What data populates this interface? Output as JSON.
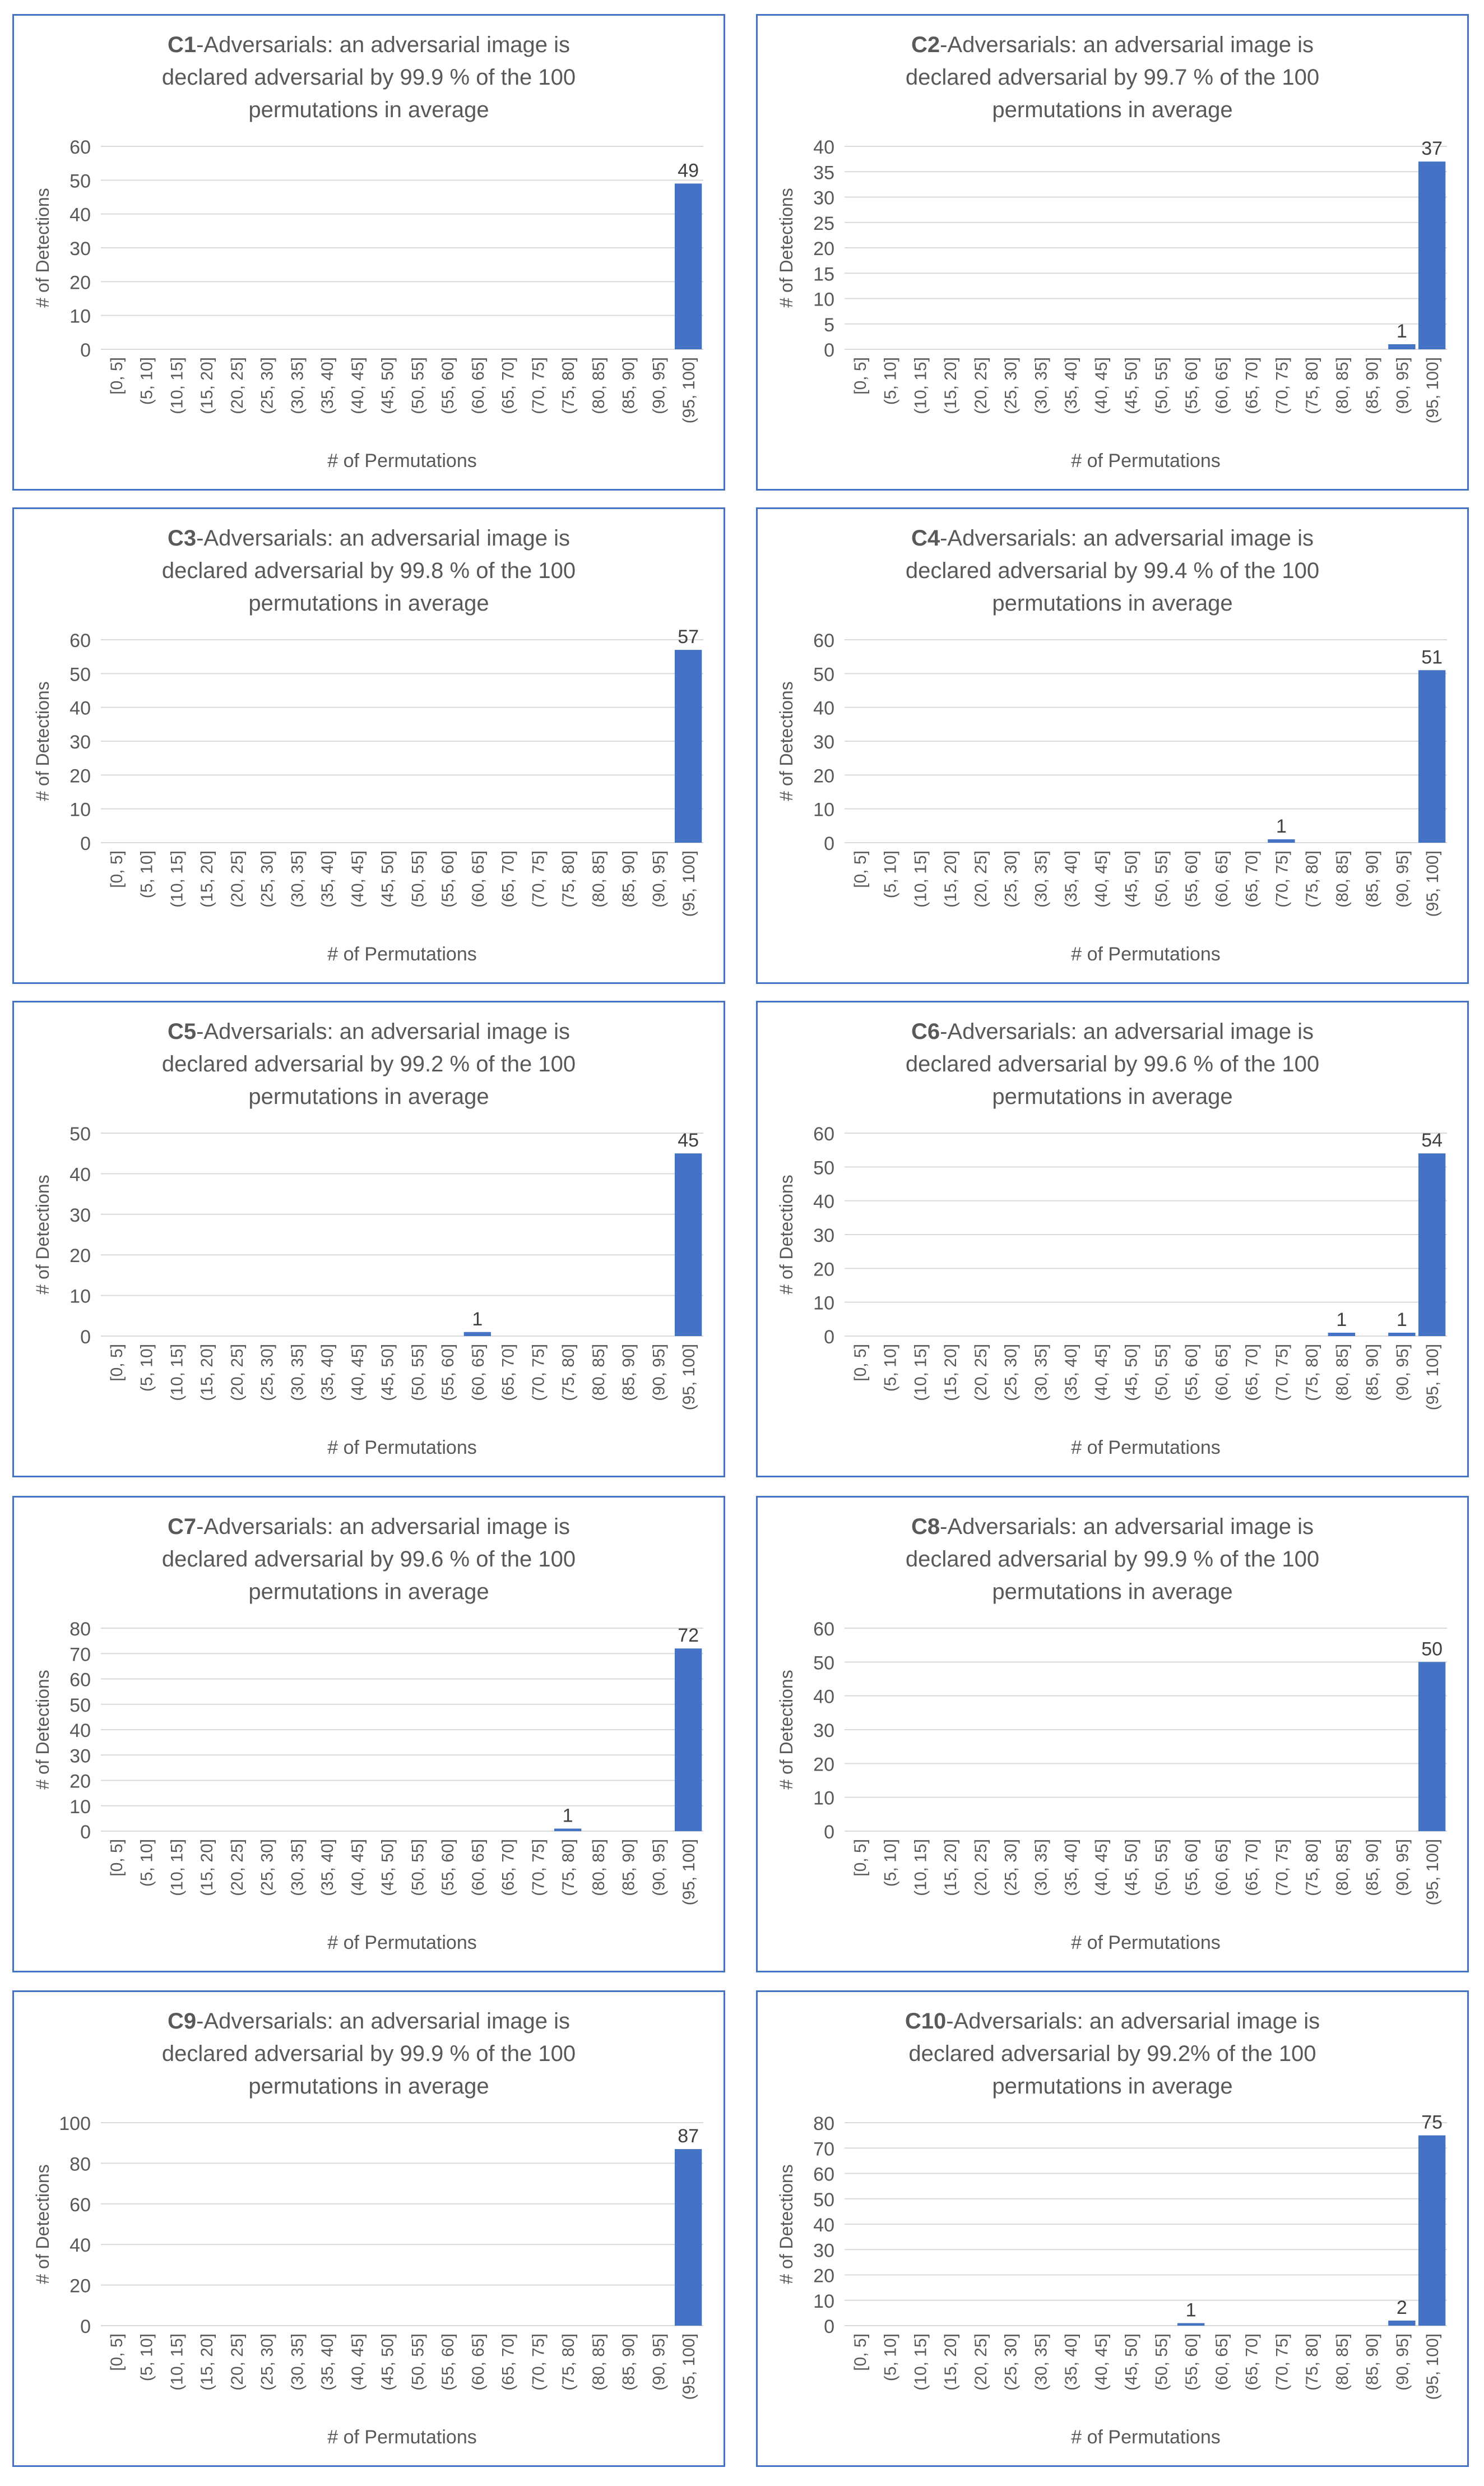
{
  "axis_labels": {
    "x": "# of Permutations",
    "y": "# of Detections"
  },
  "bar_color": "#4472c4",
  "grid_color": "#d9d9d9",
  "categories": [
    "[0, 5]",
    "(5, 10]",
    "(10, 15]",
    "(15, 20]",
    "(20, 25]",
    "(25, 30]",
    "(30, 35]",
    "(35, 40]",
    "(40, 45]",
    "(45, 50]",
    "(50, 55]",
    "(55, 60]",
    "(60, 65]",
    "(65, 70]",
    "(70, 75]",
    "(75, 80]",
    "(80, 85]",
    "(85, 90]",
    "(90, 95]",
    "(95, 100]"
  ],
  "chart_data": [
    {
      "type": "bar",
      "title_bold": "C1",
      "title_rest": "-Adversarials: an adversarial image is declared adversarial by 99.9 % of the 100 permutations in average",
      "xlabel": "# of Permutations",
      "ylabel": "# of Detections",
      "ylim": [
        0,
        60
      ],
      "yticks": [
        0,
        10,
        20,
        30,
        40,
        50,
        60
      ],
      "values": [
        0,
        0,
        0,
        0,
        0,
        0,
        0,
        0,
        0,
        0,
        0,
        0,
        0,
        0,
        0,
        0,
        0,
        0,
        0,
        49
      ]
    },
    {
      "type": "bar",
      "title_bold": "C2",
      "title_rest": "-Adversarials: an adversarial image is declared adversarial by 99.7 % of the 100 permutations in average",
      "xlabel": "# of Permutations",
      "ylabel": "# of Detections",
      "ylim": [
        0,
        40
      ],
      "yticks": [
        0,
        5,
        10,
        15,
        20,
        25,
        30,
        35,
        40
      ],
      "values": [
        0,
        0,
        0,
        0,
        0,
        0,
        0,
        0,
        0,
        0,
        0,
        0,
        0,
        0,
        0,
        0,
        0,
        0,
        1,
        37
      ]
    },
    {
      "type": "bar",
      "title_bold": "C3",
      "title_rest": "-Adversarials: an adversarial image is declared adversarial by 99.8 % of the 100 permutations in average",
      "xlabel": "# of Permutations",
      "ylabel": "# of Detections",
      "ylim": [
        0,
        60
      ],
      "yticks": [
        0,
        10,
        20,
        30,
        40,
        50,
        60
      ],
      "values": [
        0,
        0,
        0,
        0,
        0,
        0,
        0,
        0,
        0,
        0,
        0,
        0,
        0,
        0,
        0,
        0,
        0,
        0,
        0,
        57
      ]
    },
    {
      "type": "bar",
      "title_bold": "C4",
      "title_rest": "-Adversarials: an adversarial image is declared adversarial by 99.4 % of the 100 permutations in average",
      "xlabel": "# of Permutations",
      "ylabel": "# of Detections",
      "ylim": [
        0,
        60
      ],
      "yticks": [
        0,
        10,
        20,
        30,
        40,
        50,
        60
      ],
      "values": [
        0,
        0,
        0,
        0,
        0,
        0,
        0,
        0,
        0,
        0,
        0,
        0,
        0,
        0,
        1,
        0,
        0,
        0,
        0,
        51
      ]
    },
    {
      "type": "bar",
      "title_bold": "C5",
      "title_rest": "-Adversarials: an adversarial image is declared adversarial by 99.2 % of the 100 permutations in average",
      "xlabel": "# of Permutations",
      "ylabel": "# of Detections",
      "ylim": [
        0,
        50
      ],
      "yticks": [
        0,
        10,
        20,
        30,
        40,
        50
      ],
      "values": [
        0,
        0,
        0,
        0,
        0,
        0,
        0,
        0,
        0,
        0,
        0,
        0,
        1,
        0,
        0,
        0,
        0,
        0,
        0,
        45
      ]
    },
    {
      "type": "bar",
      "title_bold": "C6",
      "title_rest": "-Adversarials: an adversarial image is declared adversarial by 99.6 % of the 100 permutations in average",
      "xlabel": "# of Permutations",
      "ylabel": "# of Detections",
      "ylim": [
        0,
        60
      ],
      "yticks": [
        0,
        10,
        20,
        30,
        40,
        50,
        60
      ],
      "values": [
        0,
        0,
        0,
        0,
        0,
        0,
        0,
        0,
        0,
        0,
        0,
        0,
        0,
        0,
        0,
        0,
        1,
        0,
        1,
        54
      ]
    },
    {
      "type": "bar",
      "title_bold": "C7",
      "title_rest": "-Adversarials: an adversarial image is declared adversarial by 99.6 % of the 100 permutations in average",
      "xlabel": "# of Permutations",
      "ylabel": "# of Detections",
      "ylim": [
        0,
        80
      ],
      "yticks": [
        0,
        10,
        20,
        30,
        40,
        50,
        60,
        70,
        80
      ],
      "values": [
        0,
        0,
        0,
        0,
        0,
        0,
        0,
        0,
        0,
        0,
        0,
        0,
        0,
        0,
        0,
        1,
        0,
        0,
        0,
        72
      ]
    },
    {
      "type": "bar",
      "title_bold": "C8",
      "title_rest": "-Adversarials: an adversarial image is declared adversarial by 99.9 % of the 100 permutations in average",
      "xlabel": "# of Permutations",
      "ylabel": "# of Detections",
      "ylim": [
        0,
        60
      ],
      "yticks": [
        0,
        10,
        20,
        30,
        40,
        50,
        60
      ],
      "values": [
        0,
        0,
        0,
        0,
        0,
        0,
        0,
        0,
        0,
        0,
        0,
        0,
        0,
        0,
        0,
        0,
        0,
        0,
        0,
        50
      ]
    },
    {
      "type": "bar",
      "title_bold": "C9",
      "title_rest": "-Adversarials: an adversarial image is declared adversarial by 99.9 % of the 100 permutations in average",
      "xlabel": "# of Permutations",
      "ylabel": "# of Detections",
      "ylim": [
        0,
        100
      ],
      "yticks": [
        0,
        20,
        40,
        60,
        80,
        100
      ],
      "values": [
        0,
        0,
        0,
        0,
        0,
        0,
        0,
        0,
        0,
        0,
        0,
        0,
        0,
        0,
        0,
        0,
        0,
        0,
        0,
        87
      ]
    },
    {
      "type": "bar",
      "title_bold": "C10",
      "title_rest": "-Adversarials: an adversarial image is declared adversarial by 99.2% of the 100 permutations in average",
      "xlabel": "# of Permutations",
      "ylabel": "# of Detections",
      "ylim": [
        0,
        80
      ],
      "yticks": [
        0,
        10,
        20,
        30,
        40,
        50,
        60,
        70,
        80
      ],
      "values": [
        0,
        0,
        0,
        0,
        0,
        0,
        0,
        0,
        0,
        0,
        0,
        1,
        0,
        0,
        0,
        0,
        0,
        0,
        2,
        75
      ]
    }
  ]
}
